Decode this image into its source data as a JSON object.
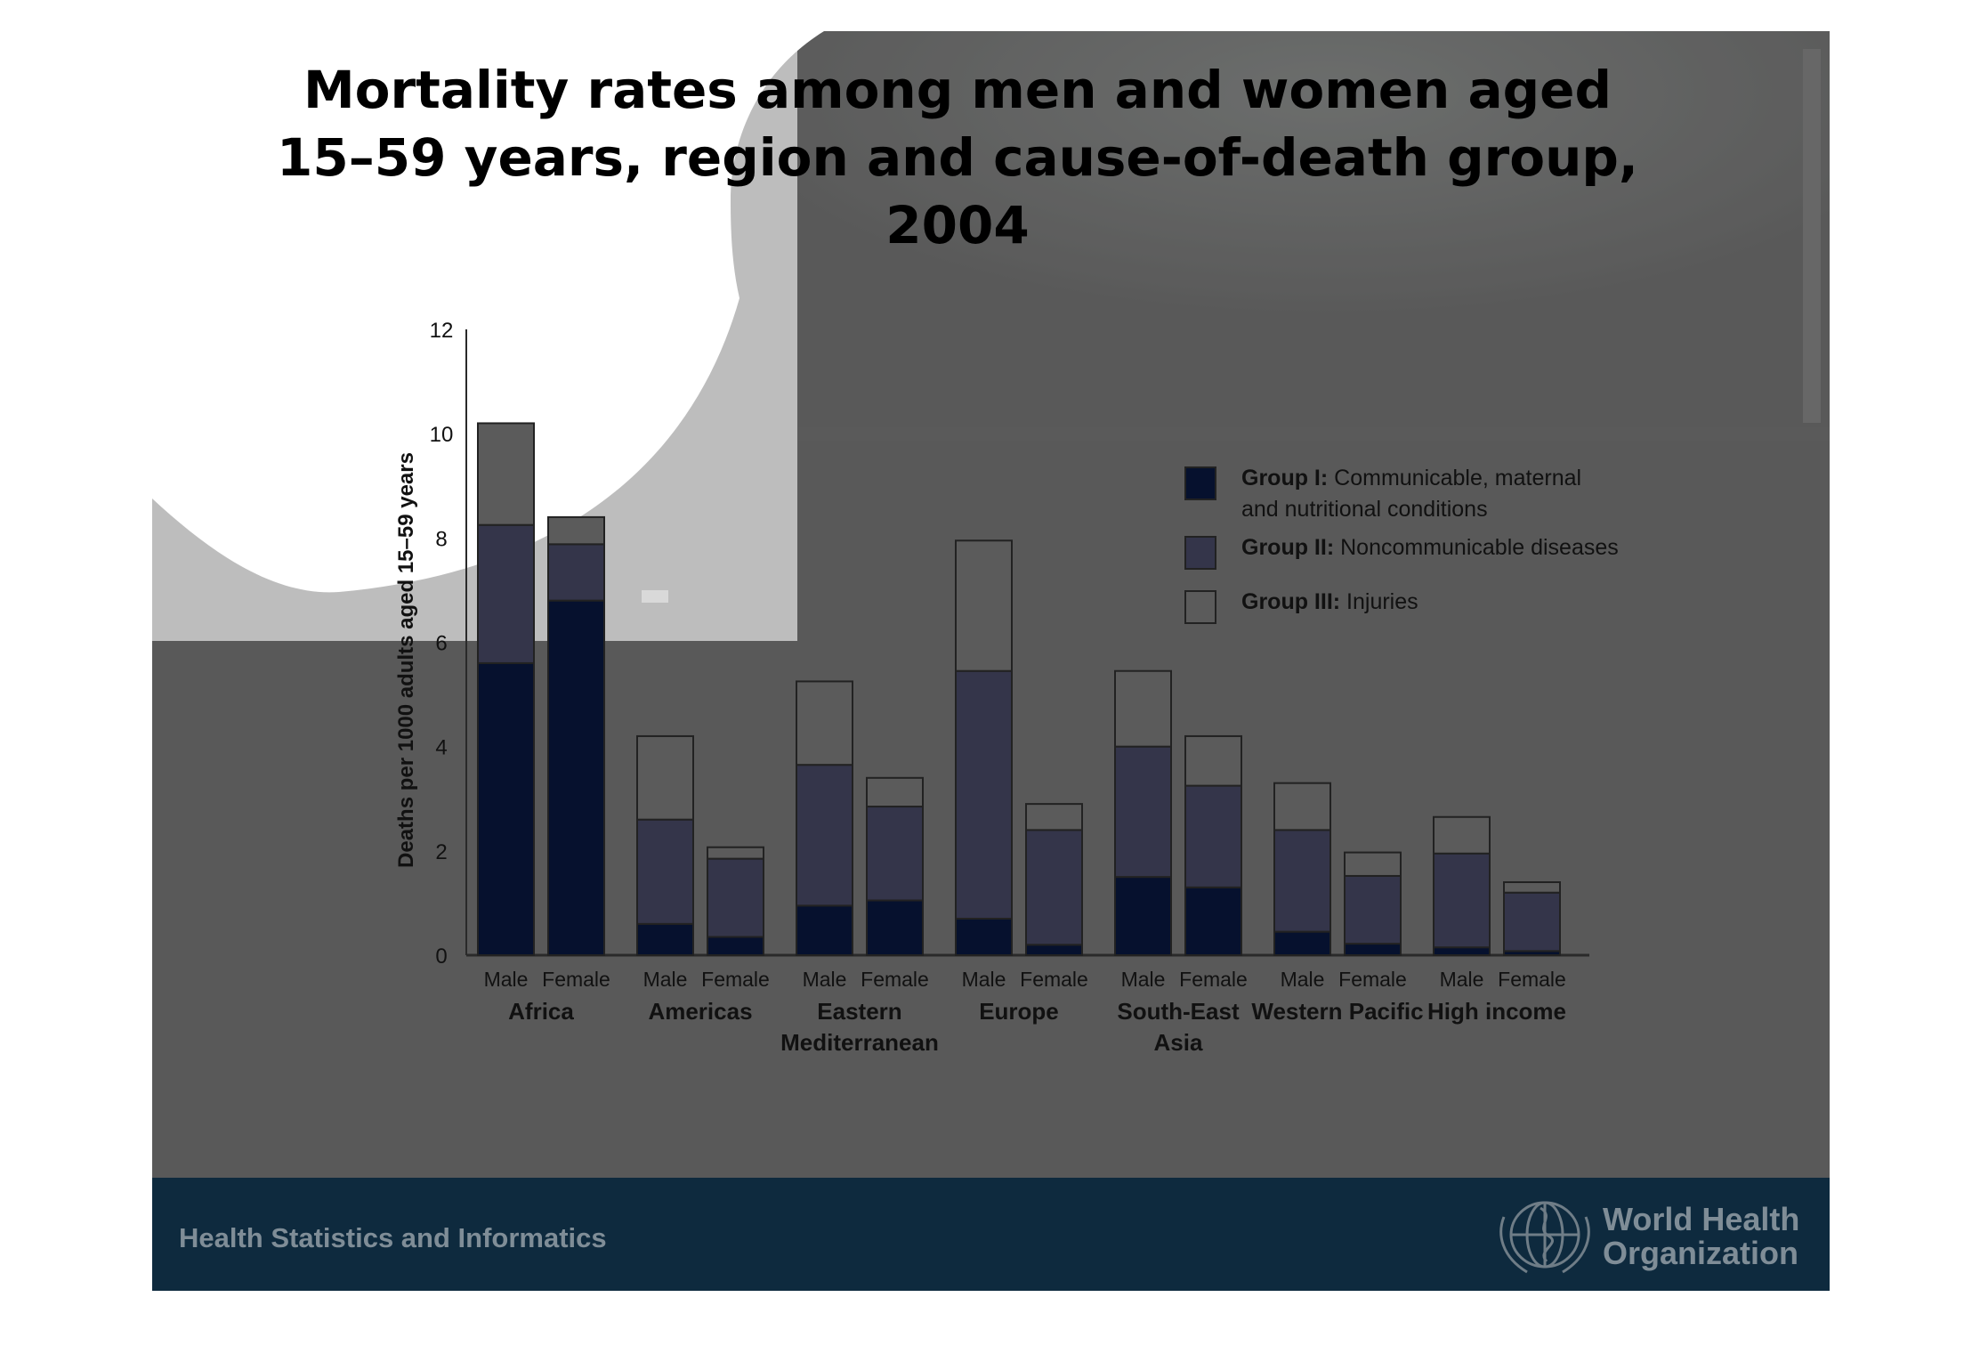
{
  "title_lines": [
    "Mortality rates among men and women aged",
    "15–59 years, region and cause-of-death group,",
    "2004"
  ],
  "footer": {
    "left_text": "Health Statistics and Informatics",
    "org_line1": "World Health",
    "org_line2": "Organization"
  },
  "colors": {
    "group1": "#06112e",
    "group2": "#34354a",
    "group3": "#5b5b5b",
    "slide_bg": "#595959",
    "footer_bg": "#0e2a3e",
    "footer_text": "#7f8d97"
  },
  "chart_data": {
    "type": "bar",
    "stacked": true,
    "ylabel": "Deaths per 1000 adults aged 15–59 years",
    "ylim": [
      0,
      12
    ],
    "yticks": [
      0,
      2,
      4,
      6,
      8,
      10,
      12
    ],
    "legend_position": "top-right",
    "groups": [
      {
        "name": [
          "Africa"
        ],
        "bars": [
          "Male",
          "Female"
        ]
      },
      {
        "name": [
          "Americas"
        ],
        "bars": [
          "Male",
          "Female"
        ]
      },
      {
        "name": [
          "Eastern",
          "Mediterranean"
        ],
        "bars": [
          "Male",
          "Female"
        ]
      },
      {
        "name": [
          "Europe"
        ],
        "bars": [
          "Male",
          "Female"
        ]
      },
      {
        "name": [
          "South-East",
          "Asia"
        ],
        "bars": [
          "Male",
          "Female"
        ]
      },
      {
        "name": [
          "Western Pacific"
        ],
        "bars": [
          "Male",
          "Female"
        ]
      },
      {
        "name": [
          "High income"
        ],
        "bars": [
          "Male",
          "Female"
        ]
      }
    ],
    "series": [
      {
        "name": "Group I",
        "legend_bold": "Group I:",
        "legend_rest": [
          "Communicable, maternal",
          "and nutritional conditions"
        ],
        "values": [
          5.6,
          6.8,
          0.6,
          0.35,
          0.95,
          1.05,
          0.7,
          0.2,
          1.5,
          1.3,
          0.45,
          0.22,
          0.15,
          0.08
        ]
      },
      {
        "name": "Group II",
        "legend_bold": "Group II:",
        "legend_rest": [
          "Noncommunicable diseases"
        ],
        "values": [
          2.65,
          1.08,
          2.0,
          1.5,
          2.7,
          1.8,
          4.75,
          2.2,
          2.5,
          1.95,
          1.95,
          1.3,
          1.8,
          1.12
        ]
      },
      {
        "name": "Group III",
        "legend_bold": "Group III:",
        "legend_rest": [
          "Injuries"
        ],
        "values": [
          1.95,
          0.52,
          1.6,
          0.22,
          1.6,
          0.55,
          2.5,
          0.5,
          1.45,
          0.95,
          0.9,
          0.45,
          0.7,
          0.2
        ]
      }
    ]
  }
}
